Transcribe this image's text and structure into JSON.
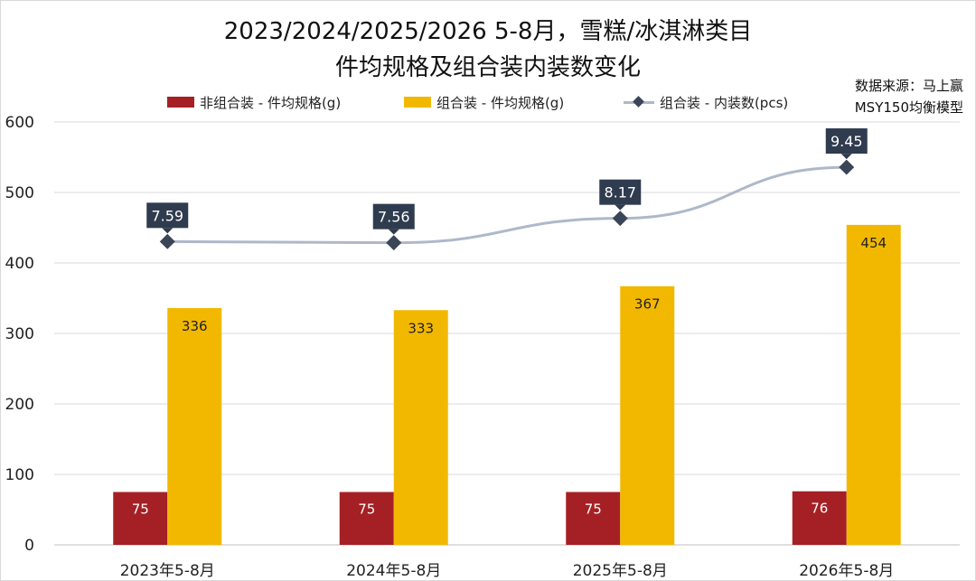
{
  "title_line1": "2023/2024/2025/2026 5-8月，雪糕/冰淇淋类目",
  "title_line2": "件均规格及组合装内装数变化",
  "source_line1": "数据来源：马上赢",
  "source_line2": "MSY150均衡模型",
  "colors": {
    "non_combo": "#a52024",
    "combo": "#f2b800",
    "line": "#aeb8c8",
    "marker": "#3a4558",
    "label_box": "#2f3b4e"
  },
  "chart_data": {
    "type": "bar",
    "categories": [
      "2023年5-8月",
      "2024年5-8月",
      "2025年5-8月",
      "2026年5-8月"
    ],
    "ylim": [
      0,
      600
    ],
    "yticks": [
      0,
      100,
      200,
      300,
      400,
      500,
      600
    ],
    "grid": true,
    "legend_position": "top",
    "series": [
      {
        "name": "非组合装 - 件均规格(g)",
        "type": "bar",
        "values": [
          75,
          75,
          75,
          76
        ]
      },
      {
        "name": "组合装 - 件均规格(g)",
        "type": "bar",
        "values": [
          336,
          333,
          367,
          454
        ]
      },
      {
        "name": "组合装 - 内装数(pcs)",
        "type": "line",
        "values": [
          7.59,
          7.56,
          8.17,
          9.45
        ],
        "labels": [
          "7.59",
          "7.56",
          "8.17",
          "9.45"
        ]
      }
    ]
  }
}
